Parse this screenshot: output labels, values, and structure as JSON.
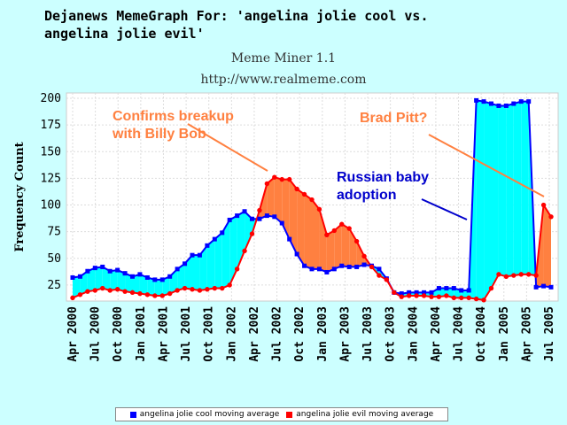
{
  "header": {
    "title": "Dejanews MemeGraph For: 'angelina jolie cool vs.\nangelina jolie evil'",
    "subtitle1": "Meme Miner 1.1",
    "subtitle2": "http://www.realmeme.com"
  },
  "colors": {
    "background": "#ccffff",
    "cool_line": "#0000ff",
    "evil_line": "#ff0000",
    "cool_fill": "#00ffff",
    "evil_fill": "#ff8040",
    "annotation_orange": "#ff8040",
    "annotation_blue": "#0000cc"
  },
  "chart_data": {
    "type": "line",
    "ylabel": "Frequency Count",
    "xlabel": "",
    "ylim": [
      10,
      205
    ],
    "yticks": [
      25,
      50,
      75,
      100,
      125,
      150,
      175,
      200
    ],
    "grid": true,
    "xtick_labels": [
      "Apr 2000",
      "Jul 2000",
      "Oct 2000",
      "Jan 2001",
      "Apr 2001",
      "Jul 2001",
      "Oct 2001",
      "Jan 2002",
      "Apr 2002",
      "Jul 2002",
      "Oct 2002",
      "Jan 2003",
      "Apr 2003",
      "Jul 2003",
      "Oct 2003",
      "Jan 2004",
      "Apr 2004",
      "Jul 2004",
      "Oct 2004",
      "Jan 2005",
      "Apr 2005",
      "Jul 2005"
    ],
    "series": [
      {
        "name": "angelina jolie cool moving average",
        "values": [
          32,
          33,
          38,
          41,
          42,
          38,
          39,
          36,
          33,
          35,
          32,
          30,
          30,
          33,
          40,
          45,
          53,
          53,
          62,
          68,
          74,
          86,
          90,
          94,
          87,
          87,
          90,
          89,
          83,
          68,
          54,
          43,
          40,
          40,
          37,
          40,
          43,
          42,
          42,
          44,
          43,
          40,
          31,
          18,
          17,
          18,
          18,
          18,
          18,
          22,
          22,
          22,
          20,
          20,
          198,
          197,
          195,
          193,
          193,
          195,
          197,
          197,
          23,
          24,
          23
        ]
      },
      {
        "name": "angelina jolie evil moving average",
        "values": [
          13,
          16,
          19,
          20,
          22,
          20,
          21,
          19,
          18,
          17,
          16,
          15,
          15,
          17,
          20,
          22,
          21,
          20,
          21,
          22,
          22,
          25,
          40,
          57,
          73,
          95,
          120,
          126,
          124,
          124,
          115,
          110,
          105,
          96,
          72,
          76,
          82,
          78,
          66,
          52,
          42,
          34,
          30,
          18,
          14,
          15,
          15,
          15,
          14,
          14,
          15,
          13,
          13,
          13,
          12,
          11,
          22,
          35,
          33,
          34,
          35,
          35,
          34,
          100,
          89
        ]
      }
    ],
    "annotations": [
      {
        "text": "Confirms breakup\nwith Billy Bob",
        "color": "#ff8040"
      },
      {
        "text": "Brad Pitt?",
        "color": "#ff8040"
      },
      {
        "text": "Russian baby\nadoption",
        "color": "#0000cc"
      }
    ]
  }
}
